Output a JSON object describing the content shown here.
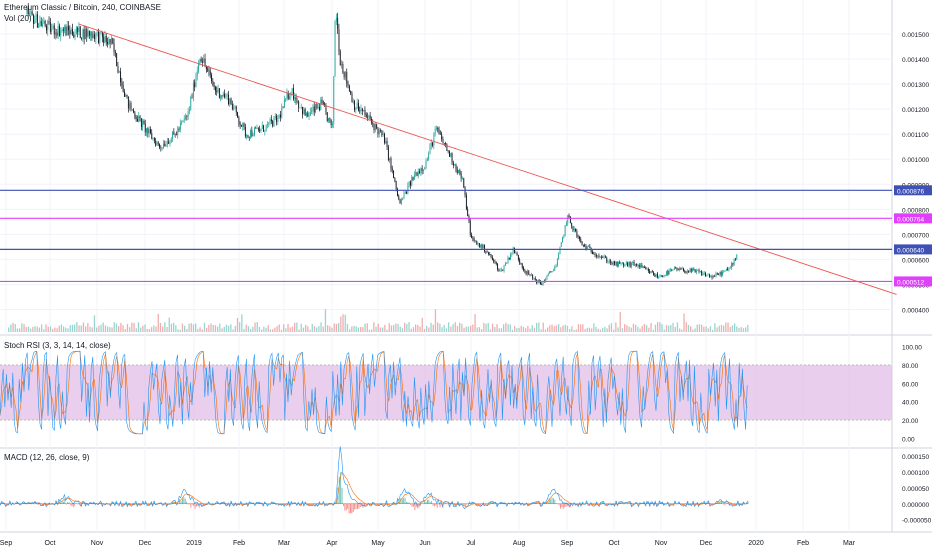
{
  "header": {
    "symbol_line": "Ethereum Classic / Bitcoin, 240, COINBASE",
    "volume_label": "Vol (20)"
  },
  "chart_data": [
    {
      "type": "candlestick",
      "panel": "price",
      "title": "Ethereum Classic / Bitcoin, 240, COINBASE",
      "x_ticks": [
        "Sep",
        "Oct",
        "Nov",
        "Dec",
        "2019",
        "Feb",
        "Mar",
        "Apr",
        "May",
        "Jun",
        "Jul",
        "Aug",
        "Sep",
        "Oct",
        "Nov",
        "Dec",
        "2020",
        "Feb",
        "Mar"
      ],
      "y_ticks": [
        "0.001500",
        "0.001400",
        "0.001300",
        "0.001200",
        "0.001100",
        "0.001000",
        "0.000900",
        "0.000800",
        "0.000700",
        "0.000600",
        "0.000500",
        "0.000400"
      ],
      "ylim": [
        0.00035,
        0.00162
      ],
      "close_path": [
        [
          "2018-09-15",
          0.00158
        ],
        [
          "2018-10-01",
          0.00152
        ],
        [
          "2018-10-15",
          0.00151
        ],
        [
          "2018-10-30",
          0.0015
        ],
        [
          "2018-11-10",
          0.00146
        ],
        [
          "2018-11-20",
          0.00122
        ],
        [
          "2018-12-01",
          0.00112
        ],
        [
          "2018-12-10",
          0.00105
        ],
        [
          "2018-12-20",
          0.0011
        ],
        [
          "2018-12-28",
          0.00118
        ],
        [
          "2019-01-05",
          0.00142
        ],
        [
          "2019-01-15",
          0.00128
        ],
        [
          "2019-01-25",
          0.00124
        ],
        [
          "2019-02-05",
          0.0011
        ],
        [
          "2019-02-15",
          0.00112
        ],
        [
          "2019-02-25",
          0.00116
        ],
        [
          "2019-03-05",
          0.00128
        ],
        [
          "2019-03-15",
          0.00117
        ],
        [
          "2019-03-25",
          0.00122
        ],
        [
          "2019-04-01",
          0.00112
        ],
        [
          "2019-04-03",
          0.00162
        ],
        [
          "2019-04-06",
          0.0014
        ],
        [
          "2019-04-15",
          0.00122
        ],
        [
          "2019-04-25",
          0.00116
        ],
        [
          "2019-05-05",
          0.00108
        ],
        [
          "2019-05-15",
          0.00082
        ],
        [
          "2019-05-25",
          0.00094
        ],
        [
          "2019-06-01",
          0.00098
        ],
        [
          "2019-06-08",
          0.00112
        ],
        [
          "2019-06-15",
          0.00104
        ],
        [
          "2019-06-25",
          0.00092
        ],
        [
          "2019-07-01",
          0.00068
        ],
        [
          "2019-07-10",
          0.00064
        ],
        [
          "2019-07-20",
          0.00055
        ],
        [
          "2019-07-28",
          0.00064
        ],
        [
          "2019-08-05",
          0.00055
        ],
        [
          "2019-08-15",
          0.0005
        ],
        [
          "2019-08-25",
          0.00058
        ],
        [
          "2019-09-01",
          0.00077
        ],
        [
          "2019-09-10",
          0.00066
        ],
        [
          "2019-09-20",
          0.00062
        ],
        [
          "2019-10-01",
          0.00058
        ],
        [
          "2019-10-15",
          0.00058
        ],
        [
          "2019-10-30",
          0.00053
        ],
        [
          "2019-11-10",
          0.00056
        ],
        [
          "2019-11-25",
          0.00055
        ],
        [
          "2019-12-05",
          0.00053
        ],
        [
          "2019-12-15",
          0.00056
        ],
        [
          "2019-12-20",
          0.00062
        ]
      ],
      "horizontal_lines": [
        {
          "label": "0.000876",
          "color": "#3f51b5"
        },
        {
          "label": "0.000764",
          "color": "#e040fb"
        },
        {
          "label": "0.000640",
          "color": "#3f51b5"
        },
        {
          "label": "0.000512",
          "color": "#e040fb"
        }
      ],
      "trendline": {
        "color": "#ef5350",
        "from": [
          "2018-10-20",
          0.00154
        ],
        "to": [
          "2020-03-31",
          0.00046
        ]
      },
      "colors": {
        "up": "#26a69a",
        "down": "#131722",
        "volume_up": "#80cbc4",
        "volume_down": "#ef9a9a"
      }
    },
    {
      "type": "line",
      "panel": "stoch_rsi",
      "title": "Stoch RSI (3, 3, 14, 14, close)",
      "y_ticks": [
        "100.00",
        "80.00",
        "60.00",
        "40.00",
        "20.00",
        "0.00"
      ],
      "ylim": [
        -5,
        105
      ],
      "band": [
        20,
        80
      ],
      "colors": {
        "k": "#2196f3",
        "d": "#ff6d00",
        "band": "#e1bee7"
      }
    },
    {
      "type": "line",
      "panel": "macd",
      "title": "MACD (12, 26, close, 9)",
      "y_ticks": [
        "0.000150",
        "0.000100",
        "0.000050",
        "0.000000",
        "-0.000050"
      ],
      "ylim": [
        -7e-05,
        0.00016
      ],
      "colors": {
        "macd": "#2196f3",
        "signal": "#ff6d00",
        "hist_up": "#26a69a",
        "hist_down": "#ef5350"
      }
    }
  ]
}
